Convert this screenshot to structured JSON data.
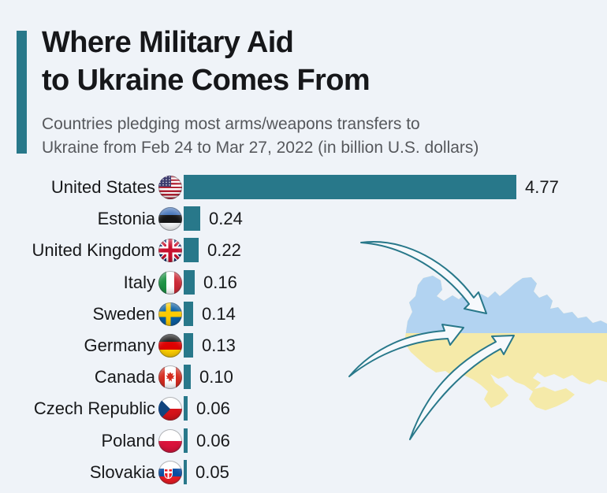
{
  "title": {
    "line1": "Where Military Aid",
    "line2": "to Ukraine Comes From"
  },
  "subtitle": {
    "line1": "Countries pledging most arms/weapons transfers to",
    "line2": "Ukraine from Feb 24 to Mar 27, 2022 (in billion U.S. dollars)"
  },
  "colors": {
    "background": "#eff3f8",
    "accent": "#28788a",
    "bar": "#28788a",
    "title_text": "#16171a",
    "subtitle_text": "#56585c",
    "label_text": "#17181a"
  },
  "chart_data": {
    "type": "bar",
    "orientation": "horizontal",
    "title": "Where Military Aid to Ukraine Comes From",
    "unit": "billion U.S. dollars",
    "period": "Feb 24 to Mar 27, 2022",
    "categories": [
      "United States",
      "Estonia",
      "United Kingdom",
      "Italy",
      "Sweden",
      "Germany",
      "Canada",
      "Czech Republic",
      "Poland",
      "Slovakia"
    ],
    "values": [
      4.77,
      0.24,
      0.22,
      0.16,
      0.14,
      0.13,
      0.1,
      0.06,
      0.06,
      0.05
    ],
    "value_labels": [
      "4.77",
      "0.24",
      "0.22",
      "0.16",
      "0.14",
      "0.13",
      "0.10",
      "0.06",
      "0.06",
      "0.05"
    ],
    "flags": [
      "us",
      "ee",
      "gb",
      "it",
      "se",
      "de",
      "ca",
      "cz",
      "pl",
      "sk"
    ],
    "xlim": [
      0,
      4.77
    ],
    "bar_color": "#28788a",
    "grid": false,
    "legend": false
  },
  "illustration": {
    "name": "ukraine-map-with-incoming-aid-arrows",
    "map_upper_color": "#b2d3f1",
    "map_lower_color": "#f5eaa9",
    "arrow_fill": "#f6f9fc",
    "arrow_stroke": "#28788a",
    "arrow_count": 3
  }
}
